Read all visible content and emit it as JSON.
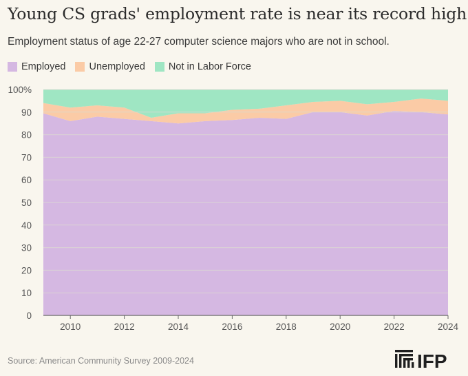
{
  "title": "Young CS grads' employment rate is near its record high",
  "subtitle": "Employment status of age 22-27 computer science majors who are not in school.",
  "source": "Source: American Community Survey 2009-2024",
  "logo_text": "IFP",
  "colors": {
    "employed": "#d5b8e2",
    "unemployed": "#fbcba6",
    "not_in_labor_force": "#9fe6c3",
    "background": "#f9f6ee",
    "grid": "#dcdad2",
    "text": "#2b2b2b"
  },
  "chart_data": {
    "type": "area",
    "stacked": true,
    "title": "Young CS grads' employment rate is near its record high",
    "subtitle": "Employment status of age 22-27 computer science majors who are not in school.",
    "xlabel": "",
    "ylabel": "",
    "x": [
      2009,
      2010,
      2011,
      2012,
      2013,
      2014,
      2015,
      2016,
      2017,
      2018,
      2019,
      2020,
      2021,
      2022,
      2023,
      2024
    ],
    "xticks": [
      2010,
      2012,
      2014,
      2016,
      2018,
      2020,
      2022,
      2024
    ],
    "yticks": [
      0,
      10,
      20,
      30,
      40,
      50,
      60,
      70,
      80,
      90,
      100
    ],
    "ytick_labels": [
      "0",
      "10",
      "20",
      "30",
      "40",
      "50",
      "60",
      "70",
      "80",
      "90",
      "100%"
    ],
    "ylim": [
      0,
      100
    ],
    "grid": true,
    "legend_position": "top-left",
    "series": [
      {
        "name": "Employed",
        "key": "employed",
        "values": [
          89.5,
          86,
          88,
          87,
          86,
          85,
          86,
          86.5,
          87.5,
          87,
          90,
          90,
          88.5,
          90.5,
          90,
          89
        ]
      },
      {
        "name": "Unemployed",
        "key": "unemployed",
        "values": [
          4.5,
          6,
          5,
          5,
          1.5,
          4.5,
          3.5,
          4.5,
          4,
          6,
          4.5,
          5,
          5,
          4,
          6,
          6
        ]
      },
      {
        "name": "Not in Labor Force",
        "key": "not_in_labor_force",
        "values": [
          6,
          8,
          7,
          8,
          12.5,
          10.5,
          10.5,
          9,
          8.5,
          7,
          5.5,
          5,
          6.5,
          5.5,
          4,
          5
        ]
      }
    ]
  }
}
